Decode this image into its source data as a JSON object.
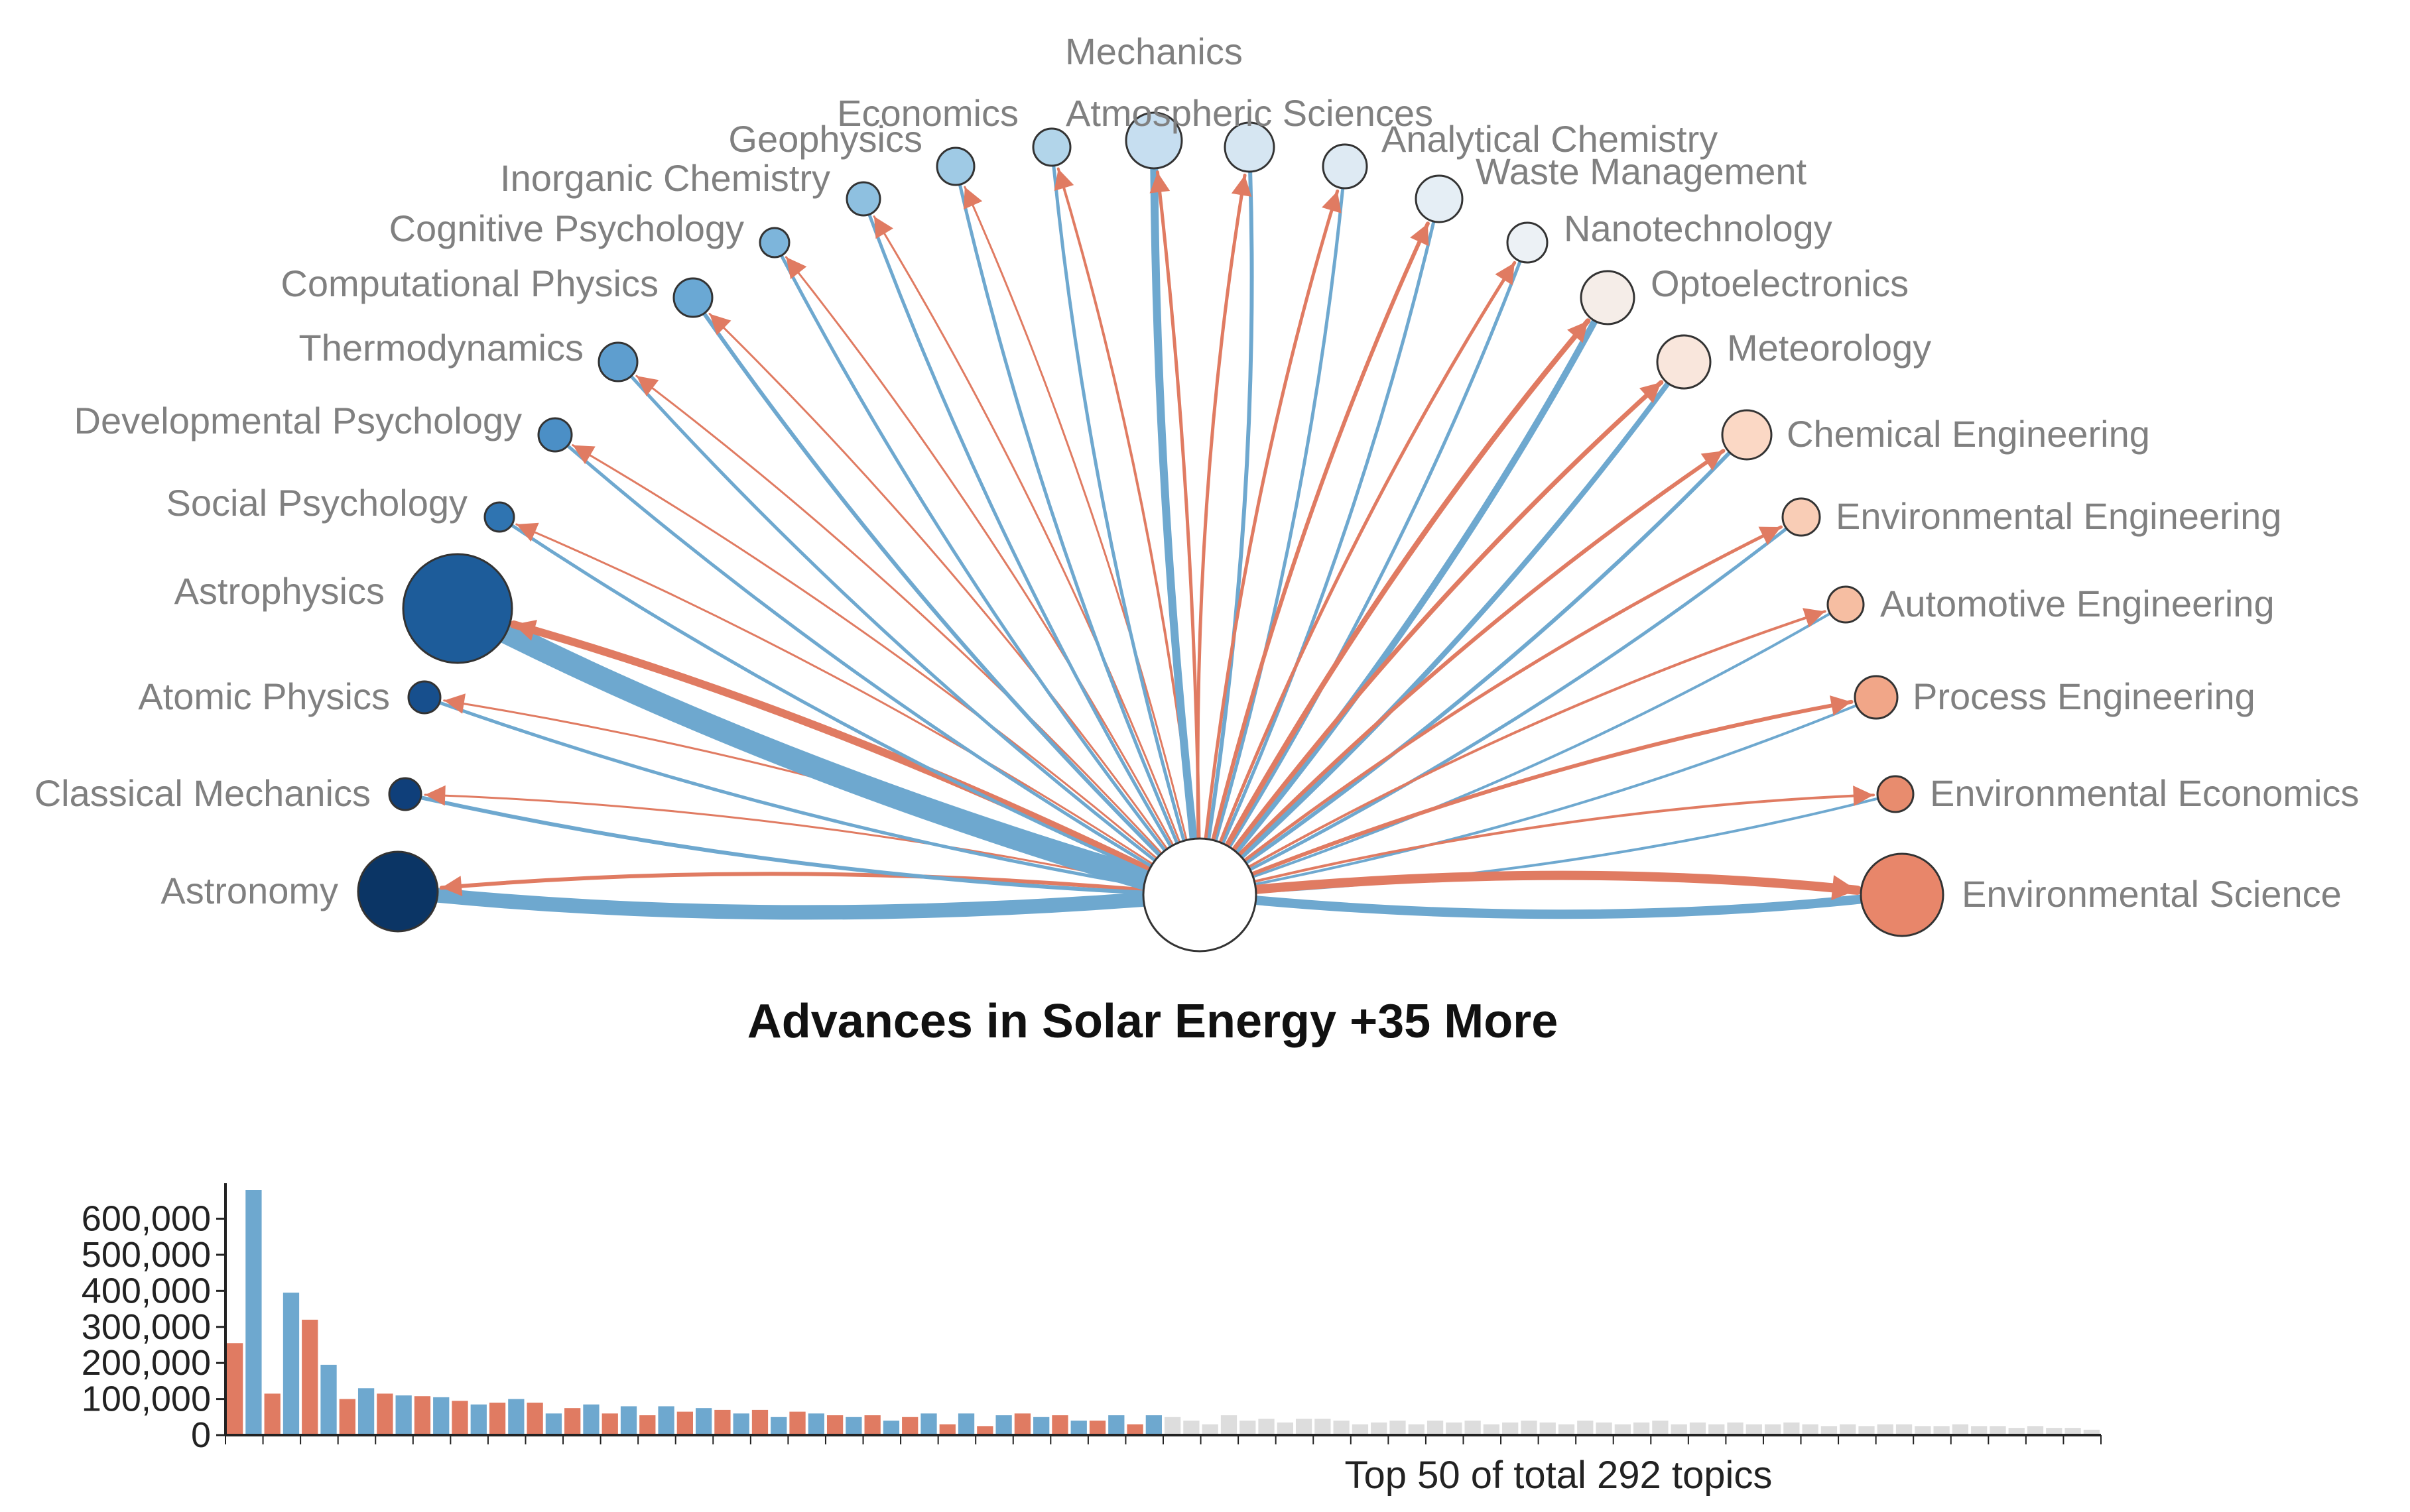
{
  "chart_data": [
    {
      "type": "network",
      "title": "Advances in Solar Energy +35 More",
      "center": "Advances in Solar Energy +35 More",
      "left_topics": [
        "Astronomy",
        "Classical Mechanics",
        "Atomic Physics",
        "Astrophysics",
        "Social Psychology",
        "Developmental Psychology",
        "Thermodynamics",
        "Computational Physics",
        "Cognitive Psychology",
        "Inorganic Chemistry",
        "Geophysics",
        "Economics"
      ],
      "top_topic": "Mechanics",
      "right_topics": [
        "Atmospheric Sciences",
        "Analytical Chemistry",
        "Waste Management",
        "Nanotechnology",
        "Optoelectronics",
        "Meteorology",
        "Chemical Engineering",
        "Environmental Engineering",
        "Automotive Engineering",
        "Process Engineering",
        "Environmental Economics",
        "Environmental Science"
      ],
      "colors": {
        "incoming": "#6ea8cf",
        "outgoing": "#e07b62",
        "center_fill": "#ffffff",
        "node_stroke": "#333333"
      }
    },
    {
      "type": "bar",
      "caption": "Top 50 of total 292 topics",
      "y_ticks": [
        "0",
        "100,000",
        "200,000",
        "300,000",
        "400,000",
        "500,000",
        "600,000"
      ],
      "ylim": [
        0,
        680000
      ],
      "series_colors": [
        "#e07b62",
        "#6ea8cf",
        "#dddddd"
      ],
      "values": [
        255000,
        680000,
        115000,
        395000,
        320000,
        195000,
        100000,
        130000,
        115000,
        110000,
        108000,
        105000,
        95000,
        85000,
        90000,
        100000,
        90000,
        60000,
        75000,
        85000,
        60000,
        80000,
        55000,
        80000,
        65000,
        75000,
        70000,
        60000,
        70000,
        50000,
        65000,
        60000,
        55000,
        50000,
        55000,
        40000,
        50000,
        60000,
        30000,
        60000,
        25000,
        55000,
        60000,
        50000,
        55000,
        40000,
        40000,
        55000,
        30000,
        55000,
        50000,
        40000,
        30000,
        55000,
        40000,
        45000,
        35000,
        45000,
        45000,
        40000,
        30000,
        35000,
        40000,
        30000,
        40000,
        35000,
        40000,
        30000,
        35000,
        40000,
        35000,
        30000,
        40000,
        35000,
        30000,
        35000,
        40000,
        30000,
        35000,
        30000,
        35000,
        30000,
        30000,
        35000,
        30000,
        25000,
        30000,
        25000,
        30000,
        30000,
        25000,
        25000,
        30000,
        25000,
        25000,
        20000,
        25000,
        20000,
        20000,
        15000
      ],
      "colors_by_bar": [
        0,
        1,
        0,
        1,
        0,
        1,
        0,
        1,
        0,
        1,
        0,
        1,
        0,
        1,
        0,
        1,
        0,
        1,
        0,
        1,
        0,
        1,
        0,
        1,
        0,
        1,
        0,
        1,
        0,
        1,
        0,
        1,
        0,
        1,
        0,
        1,
        0,
        1,
        0,
        1,
        0,
        1,
        0,
        1,
        0,
        1,
        0,
        1,
        0,
        1,
        2,
        2,
        2,
        2,
        2,
        2,
        2,
        2,
        2,
        2,
        2,
        2,
        2,
        2,
        2,
        2,
        2,
        2,
        2,
        2,
        2,
        2,
        2,
        2,
        2,
        2,
        2,
        2,
        2,
        2,
        2,
        2,
        2,
        2,
        2,
        2,
        2,
        2,
        2,
        2,
        2,
        2,
        2,
        2,
        2,
        2,
        2,
        2,
        2,
        2
      ]
    }
  ]
}
